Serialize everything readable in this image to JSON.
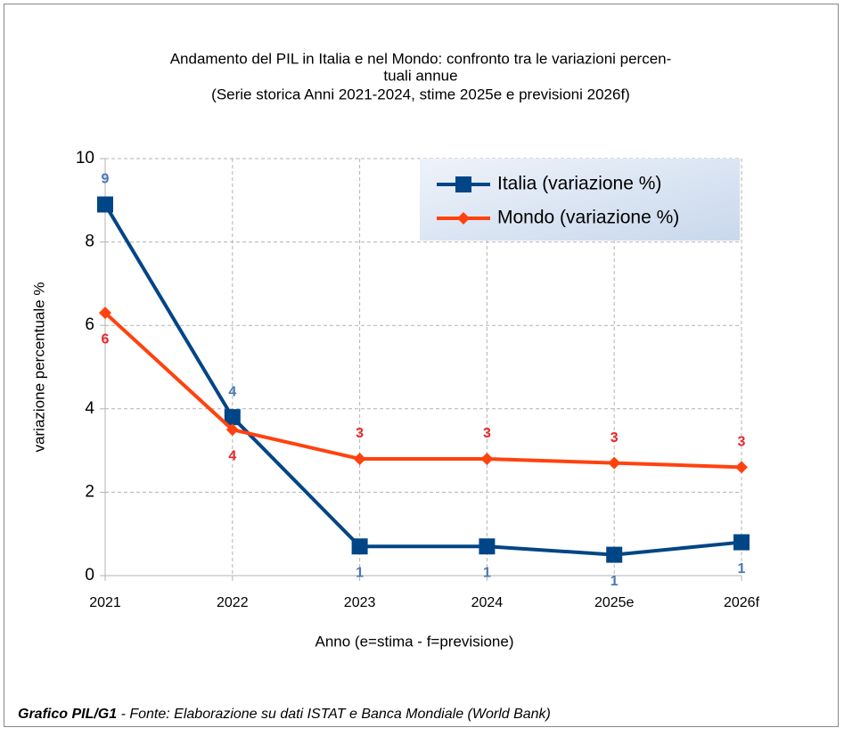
{
  "chart_data": {
    "type": "line",
    "title": [
      "Andamento del PIL in Italia e nel Mondo: confronto tra le variazioni percen-",
      "tuali annue",
      "(Serie storica Anni 2021-2024, stime 2025e e previsioni 2026f)"
    ],
    "xlabel": "Anno (e=stima - f=previsione)",
    "ylabel": "variazione percentuale %",
    "categories": [
      "2021",
      "2022",
      "2023",
      "2024",
      "2025e",
      "2026f"
    ],
    "series": [
      {
        "name": "Italia (variazione %)",
        "color": "#004586",
        "label_color": "#4a78b5",
        "marker": "square",
        "values": [
          8.9,
          3.8,
          0.7,
          0.7,
          0.5,
          0.8
        ],
        "value_labels": [
          "9",
          "4",
          "1",
          "1",
          "1",
          "1"
        ]
      },
      {
        "name": "Mondo (variazione %)",
        "color": "#ff420e",
        "label_color": "#e8262a",
        "marker": "diamond",
        "values": [
          6.3,
          3.5,
          2.8,
          2.8,
          2.7,
          2.6
        ],
        "value_labels": [
          "6",
          "4",
          "3",
          "3",
          "3",
          "3"
        ]
      }
    ],
    "ylim": [
      0,
      10
    ],
    "yticks": [
      0,
      2,
      4,
      6,
      8,
      10
    ],
    "grid": true,
    "legend": "upper right"
  },
  "caption": {
    "label": "Grafico PIL/G1",
    "text": " - Fonte: Elaborazione su dati ISTAT e Banca Mondiale (World Bank)"
  }
}
